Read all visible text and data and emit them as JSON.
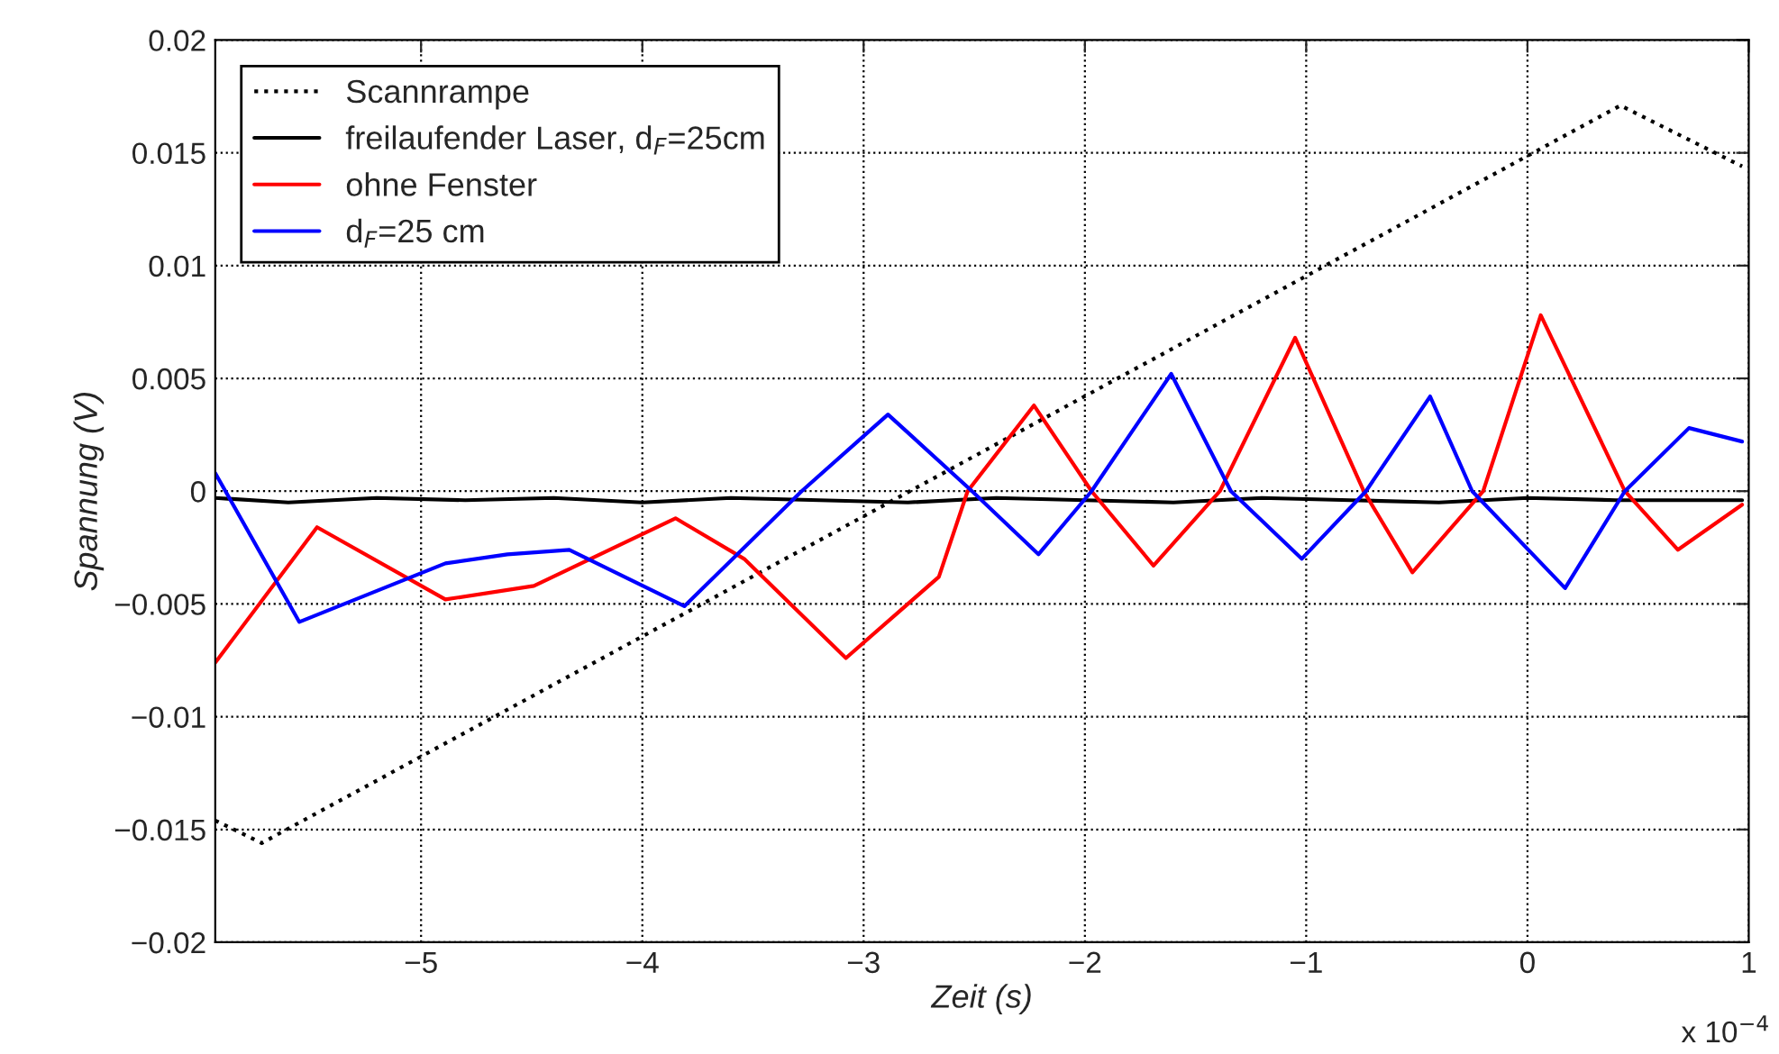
{
  "chart_data": {
    "type": "line",
    "xlabel": "Zeit (s)",
    "ylabel": "Spannung (V)",
    "annotations": [
      "x 10$^{−4}$"
    ],
    "xlim": [
      -5.93,
      1
    ],
    "xticks": [
      {
        "value": -5,
        "label": "−5"
      },
      {
        "value": -4,
        "label": "−4"
      },
      {
        "value": -3,
        "label": "−3"
      },
      {
        "value": -2,
        "label": "−2"
      },
      {
        "value": -1,
        "label": "−1"
      },
      0,
      1
    ],
    "ylim": [
      -0.02,
      0.02
    ],
    "yticks": [
      {
        "value": -0.02,
        "label": "−0.02"
      },
      {
        "value": -0.015,
        "label": "−0.015"
      },
      {
        "value": -0.01,
        "label": "−0.01"
      },
      {
        "value": -0.005,
        "label": "−0.005"
      },
      0,
      0.005,
      0.01,
      0.015,
      0.02
    ],
    "grid": true,
    "legend": "top left",
    "series": [
      {
        "name": "Scannrampe",
        "color": "#000000",
        "line_style": "dotted",
        "x": [
          -5.93,
          -5.72,
          0.42,
          0.97
        ],
        "values": [
          -0.0146,
          -0.0156,
          0.0171,
          0.0144
        ]
      },
      {
        "name": "freilaufender Laser, d$_{F}$=25cm",
        "color": "#000000",
        "line_style": "solid",
        "x": [
          -5.93,
          -5.6,
          -5.2,
          -4.8,
          -4.4,
          -4.0,
          -3.6,
          -3.2,
          -2.8,
          -2.4,
          -2.0,
          -1.6,
          -1.2,
          -0.8,
          -0.4,
          0.0,
          0.4,
          0.97
        ],
        "values": [
          -0.0003,
          -0.0005,
          -0.0003,
          -0.0004,
          -0.0003,
          -0.0005,
          -0.0003,
          -0.0004,
          -0.0005,
          -0.0003,
          -0.0004,
          -0.0005,
          -0.0003,
          -0.0004,
          -0.0005,
          -0.0003,
          -0.0004,
          -0.0004
        ]
      },
      {
        "name": "ohne Fenster",
        "color": "#ff0000",
        "line_style": "solid",
        "x": [
          -5.93,
          -5.47,
          -4.89,
          -4.49,
          -3.85,
          -3.54,
          -3.08,
          -2.66,
          -2.53,
          -2.23,
          -1.97,
          -1.69,
          -1.39,
          -1.05,
          -0.74,
          -0.52,
          -0.2,
          0.06,
          0.44,
          0.68,
          0.97
        ],
        "values": [
          -0.0076,
          -0.0016,
          -0.0048,
          -0.0042,
          -0.0012,
          -0.003,
          -0.0074,
          -0.0038,
          0,
          0.0038,
          0,
          -0.0033,
          0,
          0.0068,
          0,
          -0.0036,
          0,
          0.0078,
          0,
          -0.0026,
          -0.0006
        ]
      },
      {
        "name": "d$_{F}$=25 cm",
        "color": "#0000ff",
        "line_style": "solid",
        "x": [
          -5.93,
          -5.55,
          -4.89,
          -4.61,
          -4.33,
          -3.81,
          -3.28,
          -2.89,
          -2.51,
          -2.21,
          -1.97,
          -1.61,
          -1.34,
          -1.02,
          -0.73,
          -0.44,
          -0.25,
          0.17,
          0.44,
          0.73,
          0.97
        ],
        "values": [
          0.0008,
          -0.0058,
          -0.0032,
          -0.0028,
          -0.0026,
          -0.0051,
          0,
          0.0034,
          0,
          -0.0028,
          0,
          0.0052,
          0,
          -0.003,
          0,
          0.0042,
          0,
          -0.0043,
          0,
          0.0028,
          0.0022
        ]
      }
    ]
  }
}
